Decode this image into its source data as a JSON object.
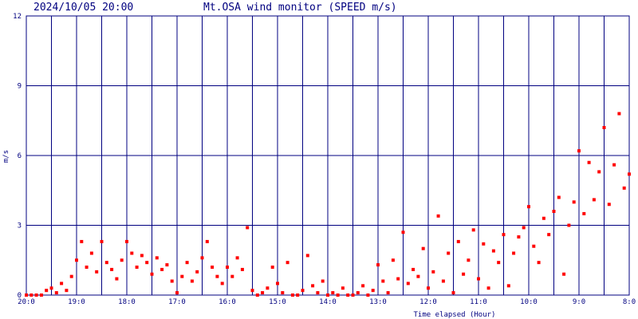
{
  "chart_data": {
    "type": "scatter",
    "title": "Mt.OSA wind monitor (SPEED m/s)",
    "subtitle": "2024/10/05 20:00",
    "x_label": "Time elapsed (Hour)",
    "y_label": "m/s",
    "color": "#ff0000",
    "grid_color": "#000080",
    "grid": true,
    "xlim": [
      0,
      12
    ],
    "xticks": [
      {
        "value": 0,
        "label": "20:0"
      },
      {
        "value": 1,
        "label": "19:0"
      },
      {
        "value": 2,
        "label": "18:0"
      },
      {
        "value": 3,
        "label": "17:0"
      },
      {
        "value": 4,
        "label": "16:0"
      },
      {
        "value": 5,
        "label": "15:0"
      },
      {
        "value": 6,
        "label": "14:0"
      },
      {
        "value": 7,
        "label": "13:0"
      },
      {
        "value": 8,
        "label": "12:0"
      },
      {
        "value": 9,
        "label": "11:0"
      },
      {
        "value": 10,
        "label": "10:0"
      },
      {
        "value": 11,
        "label": "9:0"
      },
      {
        "value": 12,
        "label": "8:0"
      }
    ],
    "minor_xticks": [
      0.5,
      1.5,
      2.5,
      3.5,
      4.5,
      5.5,
      6.5,
      7.5,
      8.5,
      9.5,
      10.5,
      11.5
    ],
    "ylim": [
      0,
      12
    ],
    "yticks": [
      0,
      3,
      6,
      9,
      12
    ],
    "x": [
      0,
      0.1,
      0.2,
      0.3,
      0.4,
      0.5,
      0.6,
      0.7,
      0.8,
      0.9,
      1,
      1.1,
      1.2,
      1.3,
      1.4,
      1.5,
      1.6,
      1.7,
      1.8,
      1.9,
      2,
      2.1,
      2.2,
      2.3,
      2.4,
      2.5,
      2.6,
      2.7,
      2.8,
      2.9,
      3,
      3.1,
      3.2,
      3.3,
      3.4,
      3.5,
      3.6,
      3.7,
      3.8,
      3.9,
      4,
      4.1,
      4.2,
      4.3,
      4.4,
      4.5,
      4.6,
      4.7,
      4.8,
      4.9,
      5,
      5.1,
      5.2,
      5.3,
      5.4,
      5.5,
      5.6,
      5.7,
      5.8,
      5.9,
      6,
      6.1,
      6.2,
      6.3,
      6.4,
      6.5,
      6.6,
      6.7,
      6.8,
      6.9,
      7,
      7.1,
      7.2,
      7.3,
      7.4,
      7.5,
      7.6,
      7.7,
      7.8,
      7.9,
      8,
      8.1,
      8.2,
      8.3,
      8.4,
      8.5,
      8.6,
      8.7,
      8.8,
      8.9,
      9,
      9.1,
      9.2,
      9.3,
      9.4,
      9.5,
      9.6,
      9.7,
      9.8,
      9.9,
      10,
      10.1,
      10.2,
      10.3,
      10.4,
      10.5,
      10.6,
      10.7,
      10.8,
      10.9,
      11,
      11.1,
      11.2,
      11.3,
      11.4,
      11.5,
      11.6,
      11.7,
      11.8,
      11.9,
      12
    ],
    "values": [
      0,
      0,
      0,
      0,
      0.2,
      0.3,
      0.1,
      0.5,
      0.2,
      0.8,
      1.5,
      2.3,
      1.2,
      1.8,
      1,
      2.3,
      1.4,
      1.1,
      0.7,
      1.5,
      2.3,
      1.8,
      1.2,
      1.7,
      1.4,
      0.9,
      1.6,
      1.1,
      1.3,
      0.6,
      0.1,
      0.8,
      1.4,
      0.6,
      1,
      1.6,
      2.3,
      1.2,
      0.8,
      0.5,
      1.2,
      0.8,
      1.6,
      1.1,
      2.9,
      0.2,
      0,
      0.1,
      0.3,
      1.2,
      0.5,
      0.1,
      1.4,
      0,
      0,
      0.2,
      1.7,
      0.4,
      0.1,
      0.6,
      0,
      0.1,
      0,
      0.3,
      0,
      0,
      0.1,
      0.4,
      0,
      0.2,
      1.3,
      0.6,
      0.1,
      1.5,
      0.7,
      2.7,
      0.5,
      1.1,
      0.8,
      2,
      0.3,
      1,
      3.4,
      0.6,
      1.8,
      0.1,
      2.3,
      0.9,
      1.5,
      2.8,
      0.7,
      2.2,
      0.3,
      1.9,
      1.4,
      2.6,
      0.4,
      1.8,
      2.5,
      2.9,
      3.8,
      2.1,
      1.4,
      3.3,
      2.6,
      3.6,
      4.2,
      0.9,
      3,
      4,
      6.2,
      3.5,
      5.7,
      4.1,
      5.3,
      7.2,
      3.9,
      5.6,
      7.8,
      4.6,
      5.2
    ]
  }
}
